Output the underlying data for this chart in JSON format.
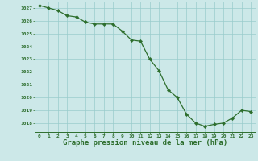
{
  "x": [
    0,
    1,
    2,
    3,
    4,
    5,
    6,
    7,
    8,
    9,
    10,
    11,
    12,
    13,
    14,
    15,
    16,
    17,
    18,
    19,
    20,
    21,
    22,
    23
  ],
  "y": [
    1027.2,
    1027.0,
    1026.8,
    1026.4,
    1026.3,
    1025.9,
    1025.75,
    1025.75,
    1025.75,
    1025.2,
    1024.5,
    1024.4,
    1023.0,
    1022.1,
    1020.6,
    1020.0,
    1018.7,
    1018.0,
    1017.75,
    1017.9,
    1018.0,
    1018.4,
    1019.0,
    1018.9
  ],
  "line_color": "#2d6e2d",
  "marker": "D",
  "marker_size": 2.2,
  "bg_color": "#cce8e8",
  "grid_color": "#99cccc",
  "axis_color": "#2d6e2d",
  "tick_color": "#2d6e2d",
  "label_color": "#2d6e2d",
  "xlabel": "Graphe pression niveau de la mer (hPa)",
  "xlabel_fontsize": 6.5,
  "ylabel_ticks": [
    1018,
    1019,
    1020,
    1021,
    1022,
    1023,
    1024,
    1025,
    1026,
    1027
  ],
  "ylim": [
    1017.3,
    1027.5
  ],
  "xlim": [
    -0.5,
    23.5
  ]
}
